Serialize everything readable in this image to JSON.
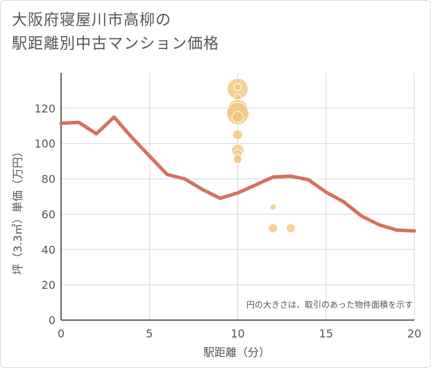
{
  "title_line1": "大阪府寝屋川市高柳の",
  "title_line2": "駅距離別中古マンション価格",
  "chart_data": {
    "type": "scatter",
    "title": "大阪府寝屋川市高柳の 駅距離別中古マンション価格",
    "xlabel": "駅距離（分）",
    "ylabel": "坪（3.3㎡）単価（万円）",
    "xlim": [
      0,
      20
    ],
    "ylim": [
      0,
      140
    ],
    "xticks": [
      0,
      5,
      10,
      15,
      20
    ],
    "yticks": [
      0,
      20,
      40,
      60,
      80,
      100,
      120
    ],
    "grid": true,
    "annotation": "円の大きさは、取引のあった物件面積を示す",
    "colors": {
      "line": "#d4725e",
      "bubble": "#f3c67d",
      "grid": "#cfd8e3"
    },
    "line_series": {
      "x": [
        0,
        1,
        2,
        3,
        4,
        5,
        6,
        7,
        8,
        9,
        10,
        11,
        12,
        13,
        14,
        15,
        16,
        17,
        18,
        19,
        20
      ],
      "y": [
        111.5,
        112,
        105.5,
        115,
        103.5,
        93,
        82.5,
        80,
        74,
        69,
        72,
        76.5,
        81,
        81.5,
        79.5,
        72.5,
        67,
        59,
        54,
        51,
        50.5
      ]
    },
    "bubbles": [
      {
        "x": 10,
        "y": 131,
        "size": 3
      },
      {
        "x": 10,
        "y": 132,
        "size": 1
      },
      {
        "x": 10,
        "y": 126,
        "size": 1
      },
      {
        "x": 10,
        "y": 119,
        "size": 3
      },
      {
        "x": 10,
        "y": 117,
        "size": 3.2
      },
      {
        "x": 10,
        "y": 115,
        "size": 1.6
      },
      {
        "x": 10,
        "y": 105,
        "size": 1.4
      },
      {
        "x": 10,
        "y": 96,
        "size": 1.8
      },
      {
        "x": 10,
        "y": 94,
        "size": 1.3
      },
      {
        "x": 10,
        "y": 92,
        "size": 1.2
      },
      {
        "x": 10,
        "y": 91,
        "size": 1.2
      },
      {
        "x": 12,
        "y": 64,
        "size": 0.9
      },
      {
        "x": 12,
        "y": 52,
        "size": 1.3
      },
      {
        "x": 13,
        "y": 52,
        "size": 1.3
      }
    ]
  }
}
